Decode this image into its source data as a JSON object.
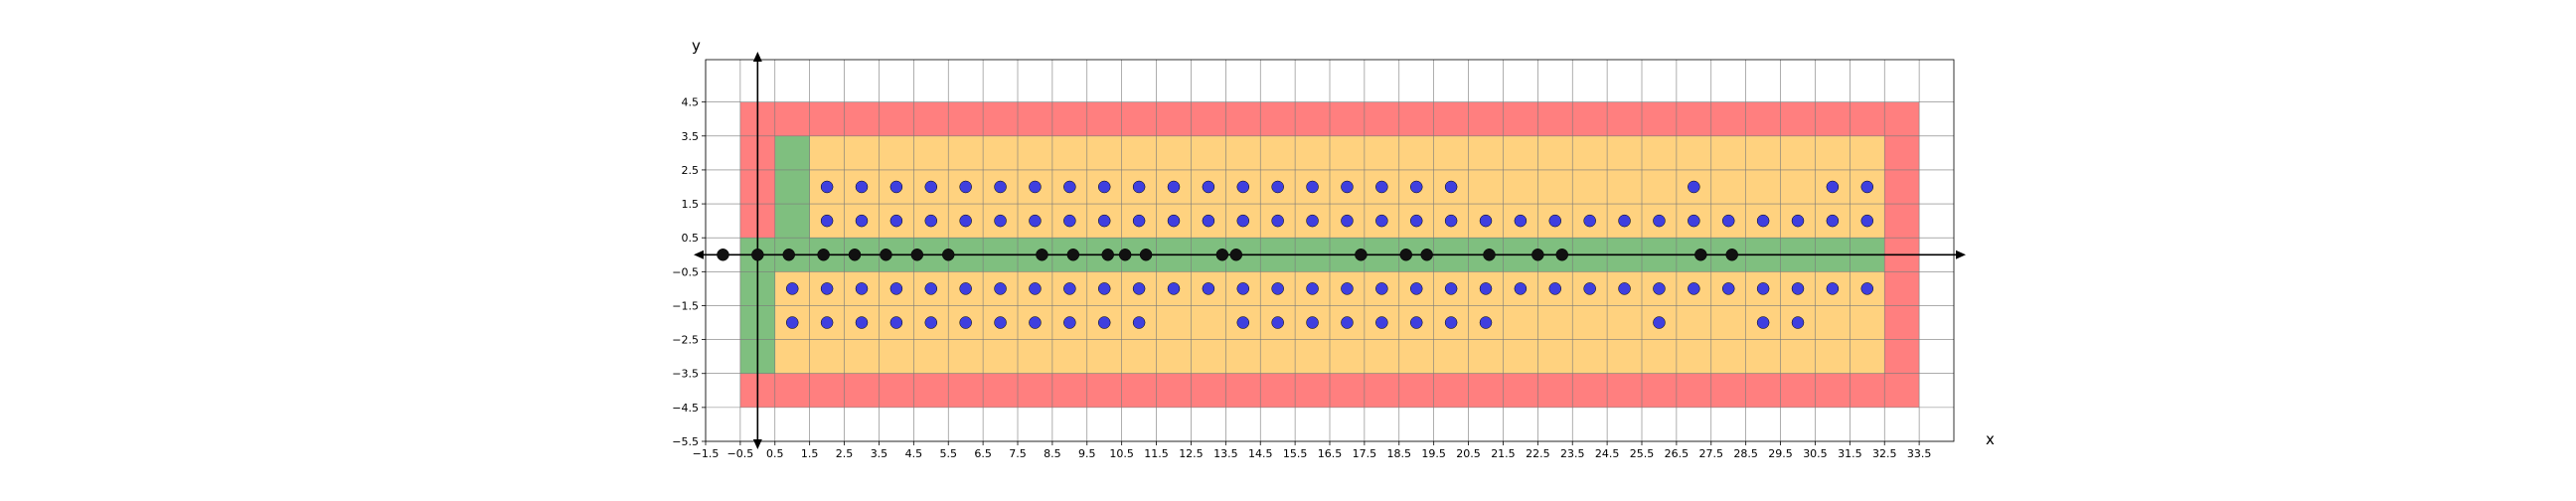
{
  "chart_data": {
    "type": "scatter",
    "title": "",
    "xlabel": "x",
    "ylabel": "y",
    "xlim": [
      -1.5,
      34.5
    ],
    "ylim": [
      -5.5,
      5.75
    ],
    "grid": true,
    "x_ticks": [
      -1.5,
      -0.5,
      0.5,
      1.5,
      2.5,
      3.5,
      4.5,
      5.5,
      6.5,
      7.5,
      8.5,
      9.5,
      10.5,
      11.5,
      12.5,
      13.5,
      14.5,
      15.5,
      16.5,
      17.5,
      18.5,
      19.5,
      20.5,
      21.5,
      22.5,
      23.5,
      24.5,
      25.5,
      26.5,
      27.5,
      28.5,
      29.5,
      30.5,
      31.5,
      32.5,
      33.5
    ],
    "x_tick_labels": [
      "−1.5",
      "−0.5",
      "0.5",
      "1.5",
      "2.5",
      "3.5",
      "4.5",
      "5.5",
      "6.5",
      "7.5",
      "8.5",
      "9.5",
      "10.5",
      "11.5",
      "12.5",
      "13.5",
      "14.5",
      "15.5",
      "16.5",
      "17.5",
      "18.5",
      "19.5",
      "20.5",
      "21.5",
      "22.5",
      "23.5",
      "24.5",
      "25.5",
      "26.5",
      "27.5",
      "28.5",
      "29.5",
      "30.5",
      "31.5",
      "32.5",
      "33.5"
    ],
    "y_ticks": [
      4.5,
      3.5,
      2.5,
      1.5,
      0.5,
      -0.5,
      -1.5,
      -2.5,
      -3.5,
      -4.5,
      -5.5
    ],
    "y_tick_labels": [
      "4.5",
      "3.5",
      "2.5",
      "1.5",
      "0.5",
      "−0.5",
      "−1.5",
      "−2.5",
      "−3.5",
      "−4.5",
      "−5.5"
    ],
    "regions": [
      {
        "color": "#ff7f7f",
        "x": [
          -0.5,
          33.5
        ],
        "y": [
          -4.5,
          4.5
        ]
      },
      {
        "color": "#ffd27f",
        "x": [
          0.5,
          32.5
        ],
        "y": [
          -3.5,
          -0.5
        ]
      },
      {
        "color": "#ffd27f",
        "x": [
          1.5,
          32.5
        ],
        "y": [
          0.5,
          3.5
        ]
      },
      {
        "color": "#7fbf7f",
        "x": [
          -0.5,
          32.5
        ],
        "y": [
          -0.5,
          0.5
        ]
      },
      {
        "color": "#7fbf7f",
        "x": [
          0.5,
          1.5
        ],
        "y": [
          0.5,
          3.5
        ]
      },
      {
        "color": "#7fbf7f",
        "x": [
          -0.5,
          0.5
        ],
        "y": [
          -3.5,
          -0.5
        ]
      }
    ],
    "series": [
      {
        "color": "#3f3fdf",
        "x": [
          2,
          3,
          4,
          5,
          6,
          7,
          8,
          9,
          10,
          11,
          12,
          13,
          14,
          15,
          16,
          17,
          18,
          19,
          20,
          27,
          31,
          32,
          2,
          3,
          4,
          5,
          6,
          7,
          8,
          9,
          10,
          11,
          12,
          13,
          14,
          15,
          16,
          17,
          18,
          19,
          20,
          21,
          22,
          23,
          24,
          25,
          26,
          27,
          28,
          29,
          30,
          31,
          32,
          1,
          2,
          3,
          4,
          5,
          6,
          7,
          8,
          9,
          10,
          11,
          12,
          13,
          14,
          15,
          16,
          17,
          18,
          19,
          20,
          21,
          22,
          23,
          24,
          25,
          26,
          27,
          28,
          29,
          30,
          31,
          32,
          1,
          2,
          3,
          4,
          5,
          6,
          7,
          8,
          9,
          10,
          11,
          14,
          15,
          16,
          17,
          18,
          19,
          20,
          21,
          26,
          29,
          30
        ],
        "y": [
          2,
          2,
          2,
          2,
          2,
          2,
          2,
          2,
          2,
          2,
          2,
          2,
          2,
          2,
          2,
          2,
          2,
          2,
          2,
          2,
          2,
          2,
          1,
          1,
          1,
          1,
          1,
          1,
          1,
          1,
          1,
          1,
          1,
          1,
          1,
          1,
          1,
          1,
          1,
          1,
          1,
          1,
          1,
          1,
          1,
          1,
          1,
          1,
          1,
          1,
          1,
          1,
          1,
          -1,
          -1,
          -1,
          -1,
          -1,
          -1,
          -1,
          -1,
          -1,
          -1,
          -1,
          -1,
          -1,
          -1,
          -1,
          -1,
          -1,
          -1,
          -1,
          -1,
          -1,
          -1,
          -1,
          -1,
          -1,
          -1,
          -1,
          -1,
          -1,
          -1,
          -1,
          -1,
          -2,
          -2,
          -2,
          -2,
          -2,
          -2,
          -2,
          -2,
          -2,
          -2,
          -2,
          -2,
          -2,
          -2,
          -2,
          -2,
          -2,
          -2,
          -2,
          -2,
          -2,
          -2
        ]
      },
      {
        "color": "#111111",
        "x": [
          -1,
          0,
          0.9,
          1.9,
          2.8,
          3.7,
          4.6,
          5.5,
          8.2,
          9.1,
          10.1,
          10.6,
          11.2,
          13.4,
          13.8,
          17.4,
          18.7,
          19.3,
          21.1,
          22.5,
          23.2,
          27.2,
          28.1
        ],
        "y": [
          0,
          0,
          0,
          0,
          0,
          0,
          0,
          0,
          0,
          0,
          0,
          0,
          0,
          0,
          0,
          0,
          0,
          0,
          0,
          0,
          0,
          0,
          0
        ]
      }
    ]
  }
}
